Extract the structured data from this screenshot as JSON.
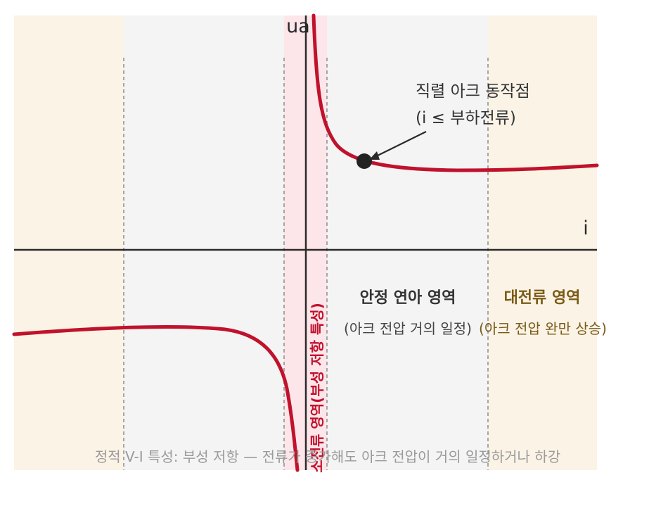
{
  "axes": {
    "y_label": "ua",
    "x_label": "i"
  },
  "annotation": {
    "line1": "직렬 아크 동작점",
    "line2": "(i ≤ 부하전류)"
  },
  "regions": {
    "small_current": {
      "label": "소전류 영역(부성 저항 특성)"
    },
    "stable": {
      "title": "안정 연아 영역",
      "subtitle": "(아크 전압 거의 일정)"
    },
    "large_current": {
      "title": "대전류 영역",
      "subtitle": "(아크 전압 완만 상승)"
    }
  },
  "caption": "정적 V-I 특성: 부성 저항 — 전류가 증가해도 아크 전압이 거의 일정하거나 하강",
  "colors": {
    "curve": "#c0122c",
    "small_band": "#fce6ea",
    "stable_band": "#f4f4f4",
    "large_band": "#fbf3e6",
    "large_text": "#7a5a16",
    "small_text": "#c0122c",
    "axis": "#2a2a2a",
    "caption": "#9a9a9a"
  }
}
